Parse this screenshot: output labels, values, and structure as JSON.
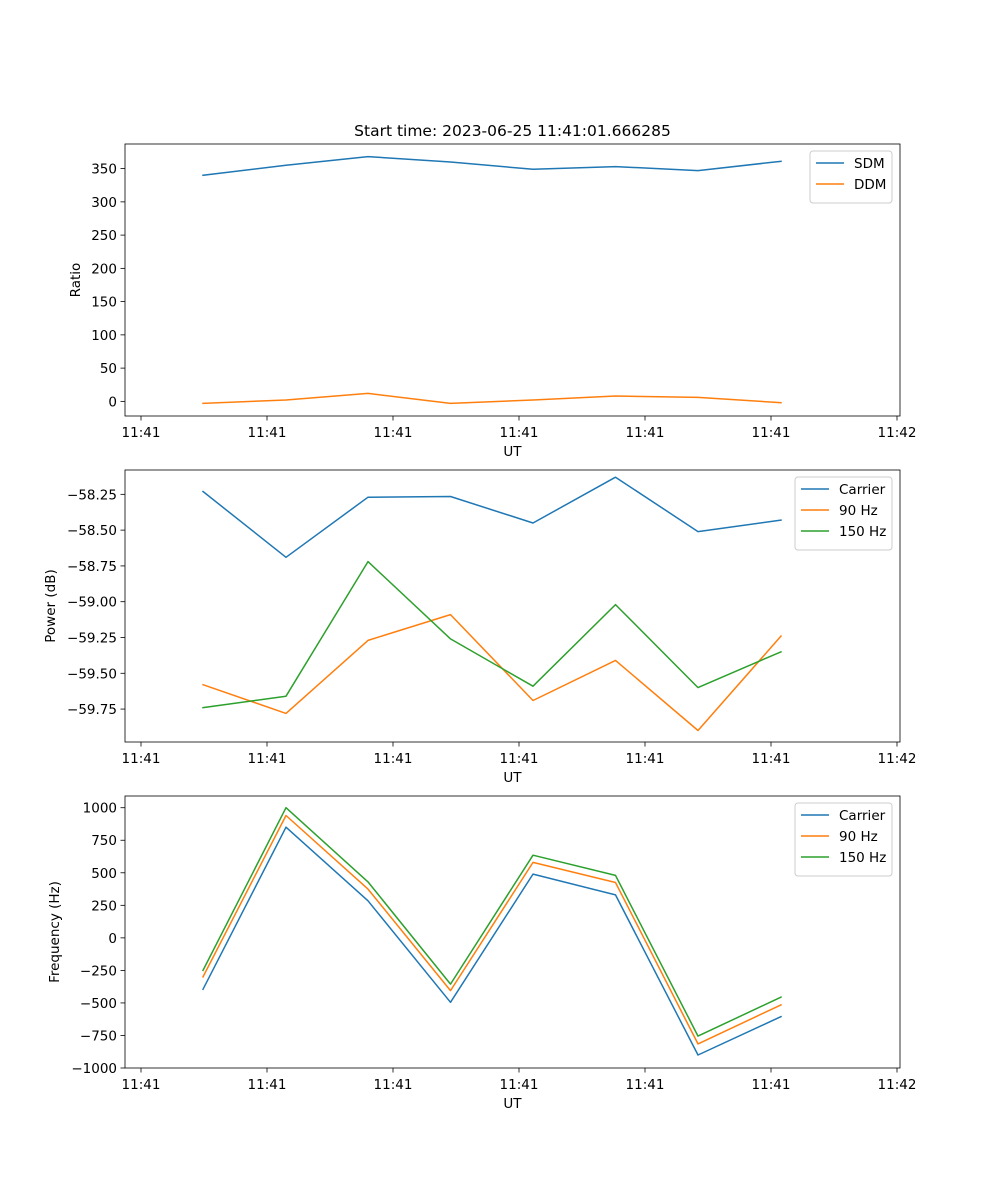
{
  "figure": {
    "title": "Start time: 2023-06-25 11:41:01.666285"
  },
  "chart_data": [
    {
      "type": "line",
      "title": "Start time: 2023-06-25 11:41:01.666285",
      "xlabel": "UT",
      "ylabel": "Ratio",
      "x_tick_labels": [
        "11:41",
        "11:41",
        "11:41",
        "11:41",
        "11:41",
        "11:41",
        "11:42"
      ],
      "y_ticks": [
        0,
        50,
        100,
        150,
        200,
        250,
        300,
        350
      ],
      "ylim": [
        -22,
        387
      ],
      "grid": false,
      "legend_position": "top-right",
      "series": [
        {
          "name": "SDM",
          "color": "#1f77b4",
          "values": [
            340,
            355,
            368,
            360,
            349,
            353,
            347,
            361
          ]
        },
        {
          "name": "DDM",
          "color": "#ff7f0e",
          "values": [
            -3,
            2,
            12,
            -3,
            2,
            8,
            6,
            -2
          ]
        }
      ]
    },
    {
      "type": "line",
      "title": "",
      "xlabel": "UT",
      "ylabel": "Power (dB)",
      "x_tick_labels": [
        "11:41",
        "11:41",
        "11:41",
        "11:41",
        "11:41",
        "11:41",
        "11:42"
      ],
      "y_ticks": [
        -59.75,
        -59.5,
        -59.25,
        -59.0,
        -58.75,
        -58.5,
        -58.25
      ],
      "y_tick_labels": [
        "−59.75",
        "−59.50",
        "−59.25",
        "−59.00",
        "−58.75",
        "−58.50",
        "−58.25"
      ],
      "ylim": [
        -59.98,
        -58.08
      ],
      "grid": false,
      "legend_position": "top-right",
      "series": [
        {
          "name": "Carrier",
          "color": "#1f77b4",
          "values": [
            -58.23,
            -58.69,
            -58.27,
            -58.265,
            -58.45,
            -58.13,
            -58.51,
            -58.43
          ]
        },
        {
          "name": "90 Hz",
          "color": "#ff7f0e",
          "values": [
            -59.58,
            -59.78,
            -59.27,
            -59.09,
            -59.69,
            -59.41,
            -59.9,
            -59.24
          ]
        },
        {
          "name": "150 Hz",
          "color": "#2ca02c",
          "values": [
            -59.74,
            -59.66,
            -58.72,
            -59.26,
            -59.59,
            -59.02,
            -59.6,
            -59.35
          ]
        }
      ]
    },
    {
      "type": "line",
      "title": "",
      "xlabel": "UT",
      "ylabel": "Frequency (Hz)",
      "x_tick_labels": [
        "11:41",
        "11:41",
        "11:41",
        "11:41",
        "11:41",
        "11:41",
        "11:42"
      ],
      "y_ticks": [
        -1000,
        -750,
        -500,
        -250,
        0,
        250,
        500,
        750,
        1000
      ],
      "y_tick_labels": [
        "−1000",
        "−750",
        "−500",
        "−250",
        "0",
        "250",
        "500",
        "750",
        "1000"
      ],
      "ylim": [
        -1000,
        1090
      ],
      "grid": false,
      "legend_position": "top-right",
      "series": [
        {
          "name": "Carrier",
          "color": "#1f77b4",
          "values": [
            -395,
            850,
            285,
            -495,
            490,
            330,
            -900,
            -605
          ]
        },
        {
          "name": "90 Hz",
          "color": "#ff7f0e",
          "values": [
            -300,
            940,
            375,
            -405,
            580,
            425,
            -815,
            -515
          ]
        },
        {
          "name": "150 Hz",
          "color": "#2ca02c",
          "values": [
            -250,
            1000,
            430,
            -355,
            635,
            480,
            -755,
            -455
          ]
        }
      ]
    }
  ]
}
